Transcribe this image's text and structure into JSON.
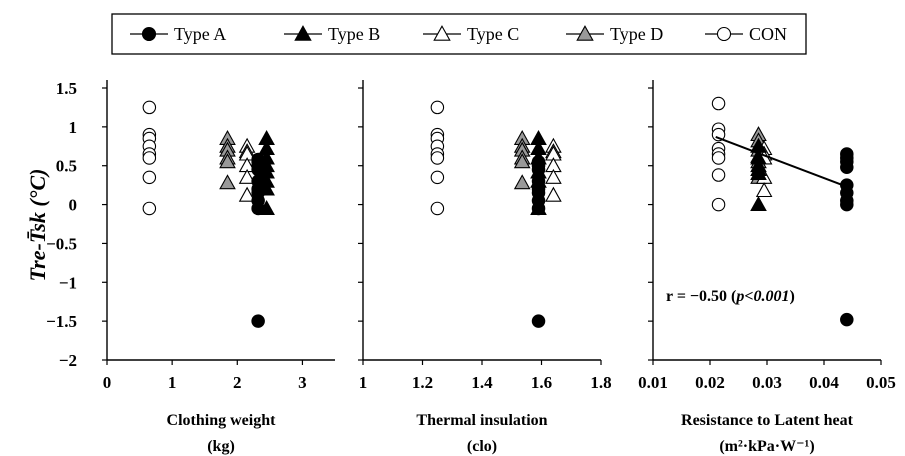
{
  "chart_data": {
    "type": "scatter",
    "ylabel": "Tre-T̄sk (°C)",
    "ylim": [
      -2,
      1.5
    ],
    "yticks": [
      "1.5",
      "1",
      "0.5",
      "0",
      "-0.5",
      "-1",
      "-1.5",
      "-2"
    ],
    "legend": {
      "placement": "top-center",
      "items": [
        {
          "name": "Type A",
          "marker": "circle",
          "fill": "#000000"
        },
        {
          "name": "Type B",
          "marker": "triangle",
          "fill": "#000000"
        },
        {
          "name": "Type C",
          "marker": "triangle",
          "fill": "#ffffff"
        },
        {
          "name": "Type D",
          "marker": "triangle",
          "fill": "#999999"
        },
        {
          "name": "CON",
          "marker": "circle",
          "fill": "#ffffff"
        }
      ]
    },
    "panels": [
      {
        "xlabel": "Clothing weight",
        "xunit": "(kg)",
        "xlim": [
          0,
          3.5
        ],
        "xticks": [
          "0",
          "1",
          "2",
          "3"
        ],
        "series": [
          {
            "name": "Type A",
            "x": [
              2.32,
              2.32,
              2.32,
              2.32,
              2.32,
              2.32,
              2.32,
              2.32,
              2.32,
              2.32
            ],
            "y": [
              0.55,
              0.5,
              0.45,
              0.2,
              0.15,
              0.05,
              -0.05,
              -1.5,
              0.58,
              0.3
            ]
          },
          {
            "name": "Type B",
            "x": [
              2.45,
              2.45,
              2.45,
              2.45,
              2.45,
              2.45,
              2.45,
              2.45
            ],
            "y": [
              0.85,
              0.72,
              0.6,
              0.5,
              0.42,
              0.3,
              0.2,
              -0.05
            ]
          },
          {
            "name": "Type C",
            "x": [
              2.15,
              2.15,
              2.15,
              2.15,
              2.15,
              2.15
            ],
            "y": [
              0.75,
              0.68,
              0.65,
              0.5,
              0.35,
              0.12
            ]
          },
          {
            "name": "Type D",
            "x": [
              1.85,
              1.85,
              1.85,
              1.85,
              1.85,
              1.85
            ],
            "y": [
              0.85,
              0.75,
              0.7,
              0.6,
              0.55,
              0.28
            ]
          },
          {
            "name": "CON",
            "x": [
              0.65,
              0.65,
              0.65,
              0.65,
              0.65,
              0.65,
              0.65,
              0.65
            ],
            "y": [
              1.25,
              0.9,
              0.85,
              0.75,
              0.65,
              0.6,
              0.35,
              -0.05
            ]
          }
        ]
      },
      {
        "xlabel": "Thermal insulation",
        "xunit": "(clo)",
        "xlim": [
          1,
          1.8
        ],
        "xticks": [
          "1",
          "1.2",
          "1.4",
          "1.6",
          "1.8"
        ],
        "series": [
          {
            "name": "Type A",
            "x": [
              1.59,
              1.59,
              1.59,
              1.59,
              1.59,
              1.59,
              1.59,
              1.59,
              1.59
            ],
            "y": [
              0.55,
              0.5,
              0.45,
              0.3,
              0.2,
              0.15,
              0.05,
              -0.05,
              -1.5
            ]
          },
          {
            "name": "Type B",
            "x": [
              1.59,
              1.59,
              1.59,
              1.59,
              1.59,
              1.59
            ],
            "y": [
              0.85,
              0.72,
              0.6,
              0.42,
              0.3,
              -0.05
            ]
          },
          {
            "name": "Type C",
            "x": [
              1.64,
              1.64,
              1.64,
              1.64,
              1.64,
              1.64
            ],
            "y": [
              0.75,
              0.68,
              0.65,
              0.5,
              0.35,
              0.12
            ]
          },
          {
            "name": "Type D",
            "x": [
              1.535,
              1.535,
              1.535,
              1.535,
              1.535,
              1.535
            ],
            "y": [
              0.85,
              0.75,
              0.7,
              0.6,
              0.55,
              0.28
            ]
          },
          {
            "name": "CON",
            "x": [
              1.25,
              1.25,
              1.25,
              1.25,
              1.25,
              1.25,
              1.25,
              1.25
            ],
            "y": [
              1.25,
              0.9,
              0.85,
              0.75,
              0.65,
              0.6,
              0.35,
              -0.05
            ]
          }
        ]
      },
      {
        "xlabel": "Resistance to Latent heat",
        "xunit": "(m²·kPa·W⁻¹)",
        "xlim": [
          0.01,
          0.05
        ],
        "xticks": [
          "0.01",
          "0.02",
          "0.03",
          "0.04",
          "0.05"
        ],
        "annotation": {
          "prefix": "r = −0.50 (",
          "italic": "p<0.001",
          "suffix": ")"
        },
        "regression": {
          "x": [
            0.021,
            0.044
          ],
          "y": [
            0.87,
            0.23
          ]
        },
        "series": [
          {
            "name": "Type A",
            "x": [
              0.044,
              0.044,
              0.044,
              0.044,
              0.044,
              0.044,
              0.044,
              0.044,
              0.044
            ],
            "y": [
              0.65,
              0.55,
              0.48,
              0.25,
              0.15,
              0.05,
              0.0,
              -1.48,
              0.6
            ]
          },
          {
            "name": "Type B",
            "x": [
              0.0285,
              0.0285,
              0.0285,
              0.0285,
              0.0285,
              0.0285
            ],
            "y": [
              0.75,
              0.6,
              0.5,
              0.45,
              0.4,
              0.0
            ]
          },
          {
            "name": "Type C",
            "x": [
              0.0295,
              0.0295,
              0.0295,
              0.0295,
              0.0295
            ],
            "y": [
              0.72,
              0.65,
              0.6,
              0.35,
              0.18
            ]
          },
          {
            "name": "Type D",
            "x": [
              0.0285,
              0.0285,
              0.0285,
              0.0285,
              0.0285,
              0.0285
            ],
            "y": [
              0.9,
              0.82,
              0.7,
              0.62,
              0.55,
              0.35
            ]
          },
          {
            "name": "CON",
            "x": [
              0.0215,
              0.0215,
              0.0215,
              0.0215,
              0.0215,
              0.0215,
              0.0215,
              0.0215
            ],
            "y": [
              1.3,
              0.97,
              0.9,
              0.72,
              0.65,
              0.6,
              0.38,
              0.0
            ]
          }
        ]
      }
    ]
  }
}
